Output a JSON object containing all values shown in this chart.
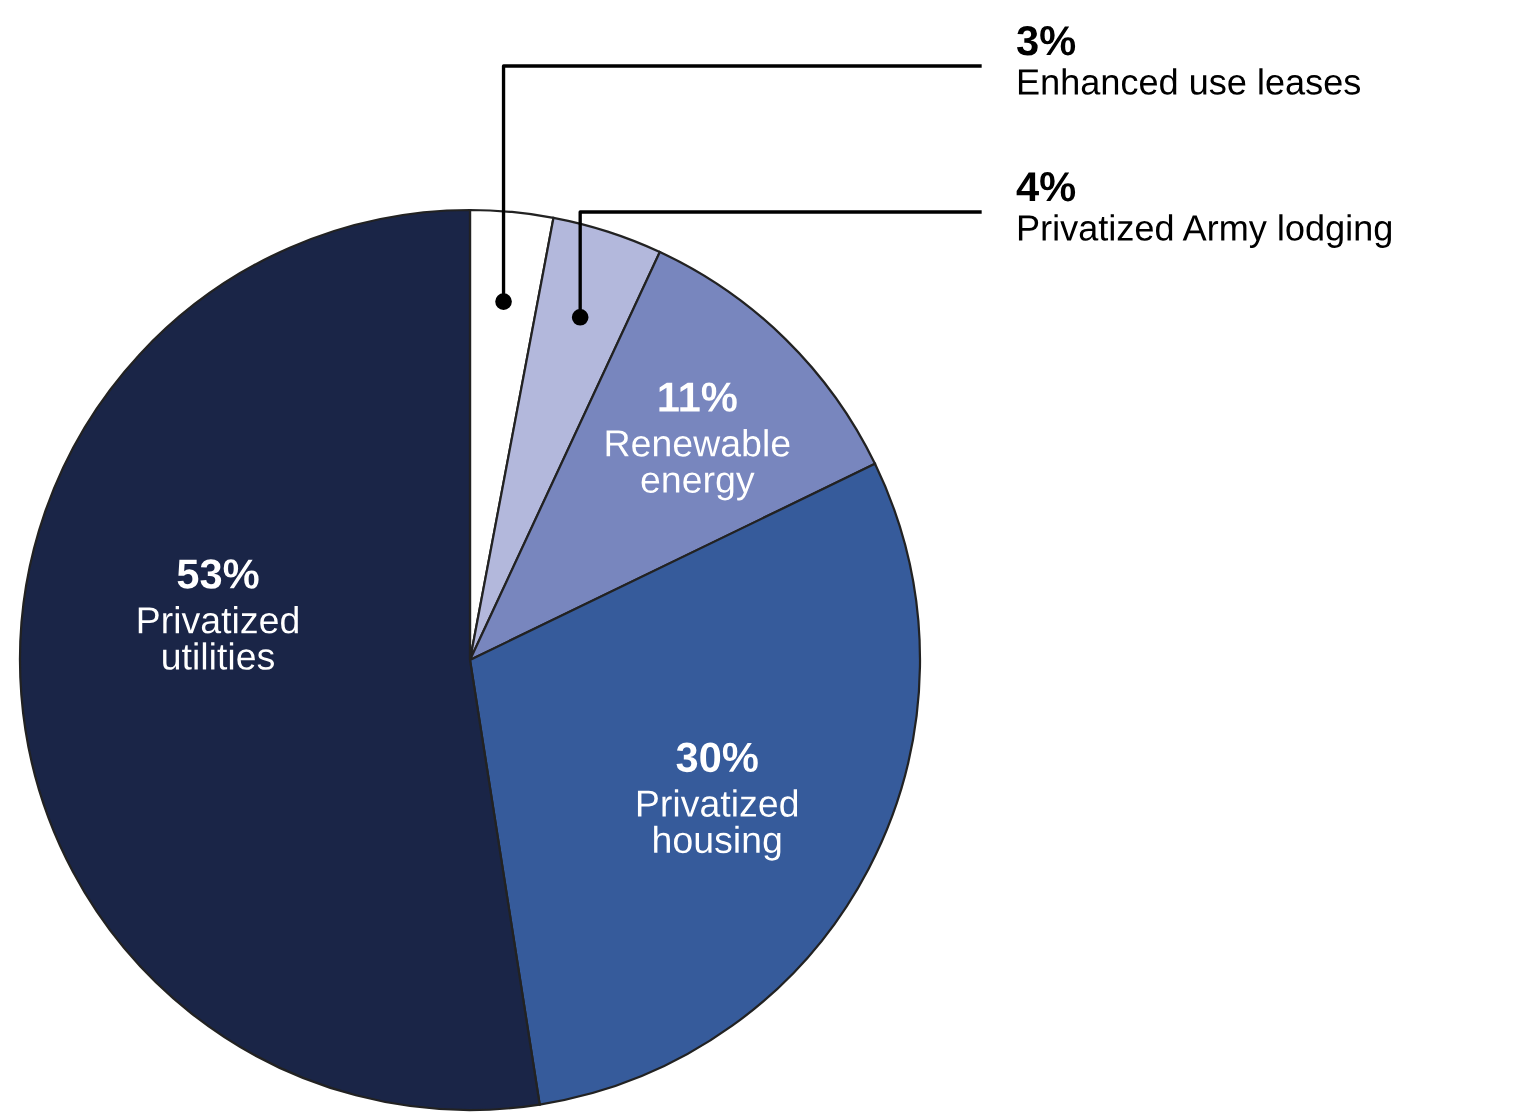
{
  "chart_data": {
    "type": "pie",
    "categories": [
      "Enhanced use leases",
      "Privatized Army lodging",
      "Renewable energy",
      "Privatized housing",
      "Privatized utilities"
    ],
    "values": [
      3,
      4,
      11,
      30,
      53
    ],
    "colors": [
      "#ffffff",
      "#b3b8dc",
      "#7886be",
      "#365b9b",
      "#1a2547"
    ],
    "value_labels": [
      "3%",
      "4%",
      "11%",
      "30%",
      "53%"
    ]
  }
}
